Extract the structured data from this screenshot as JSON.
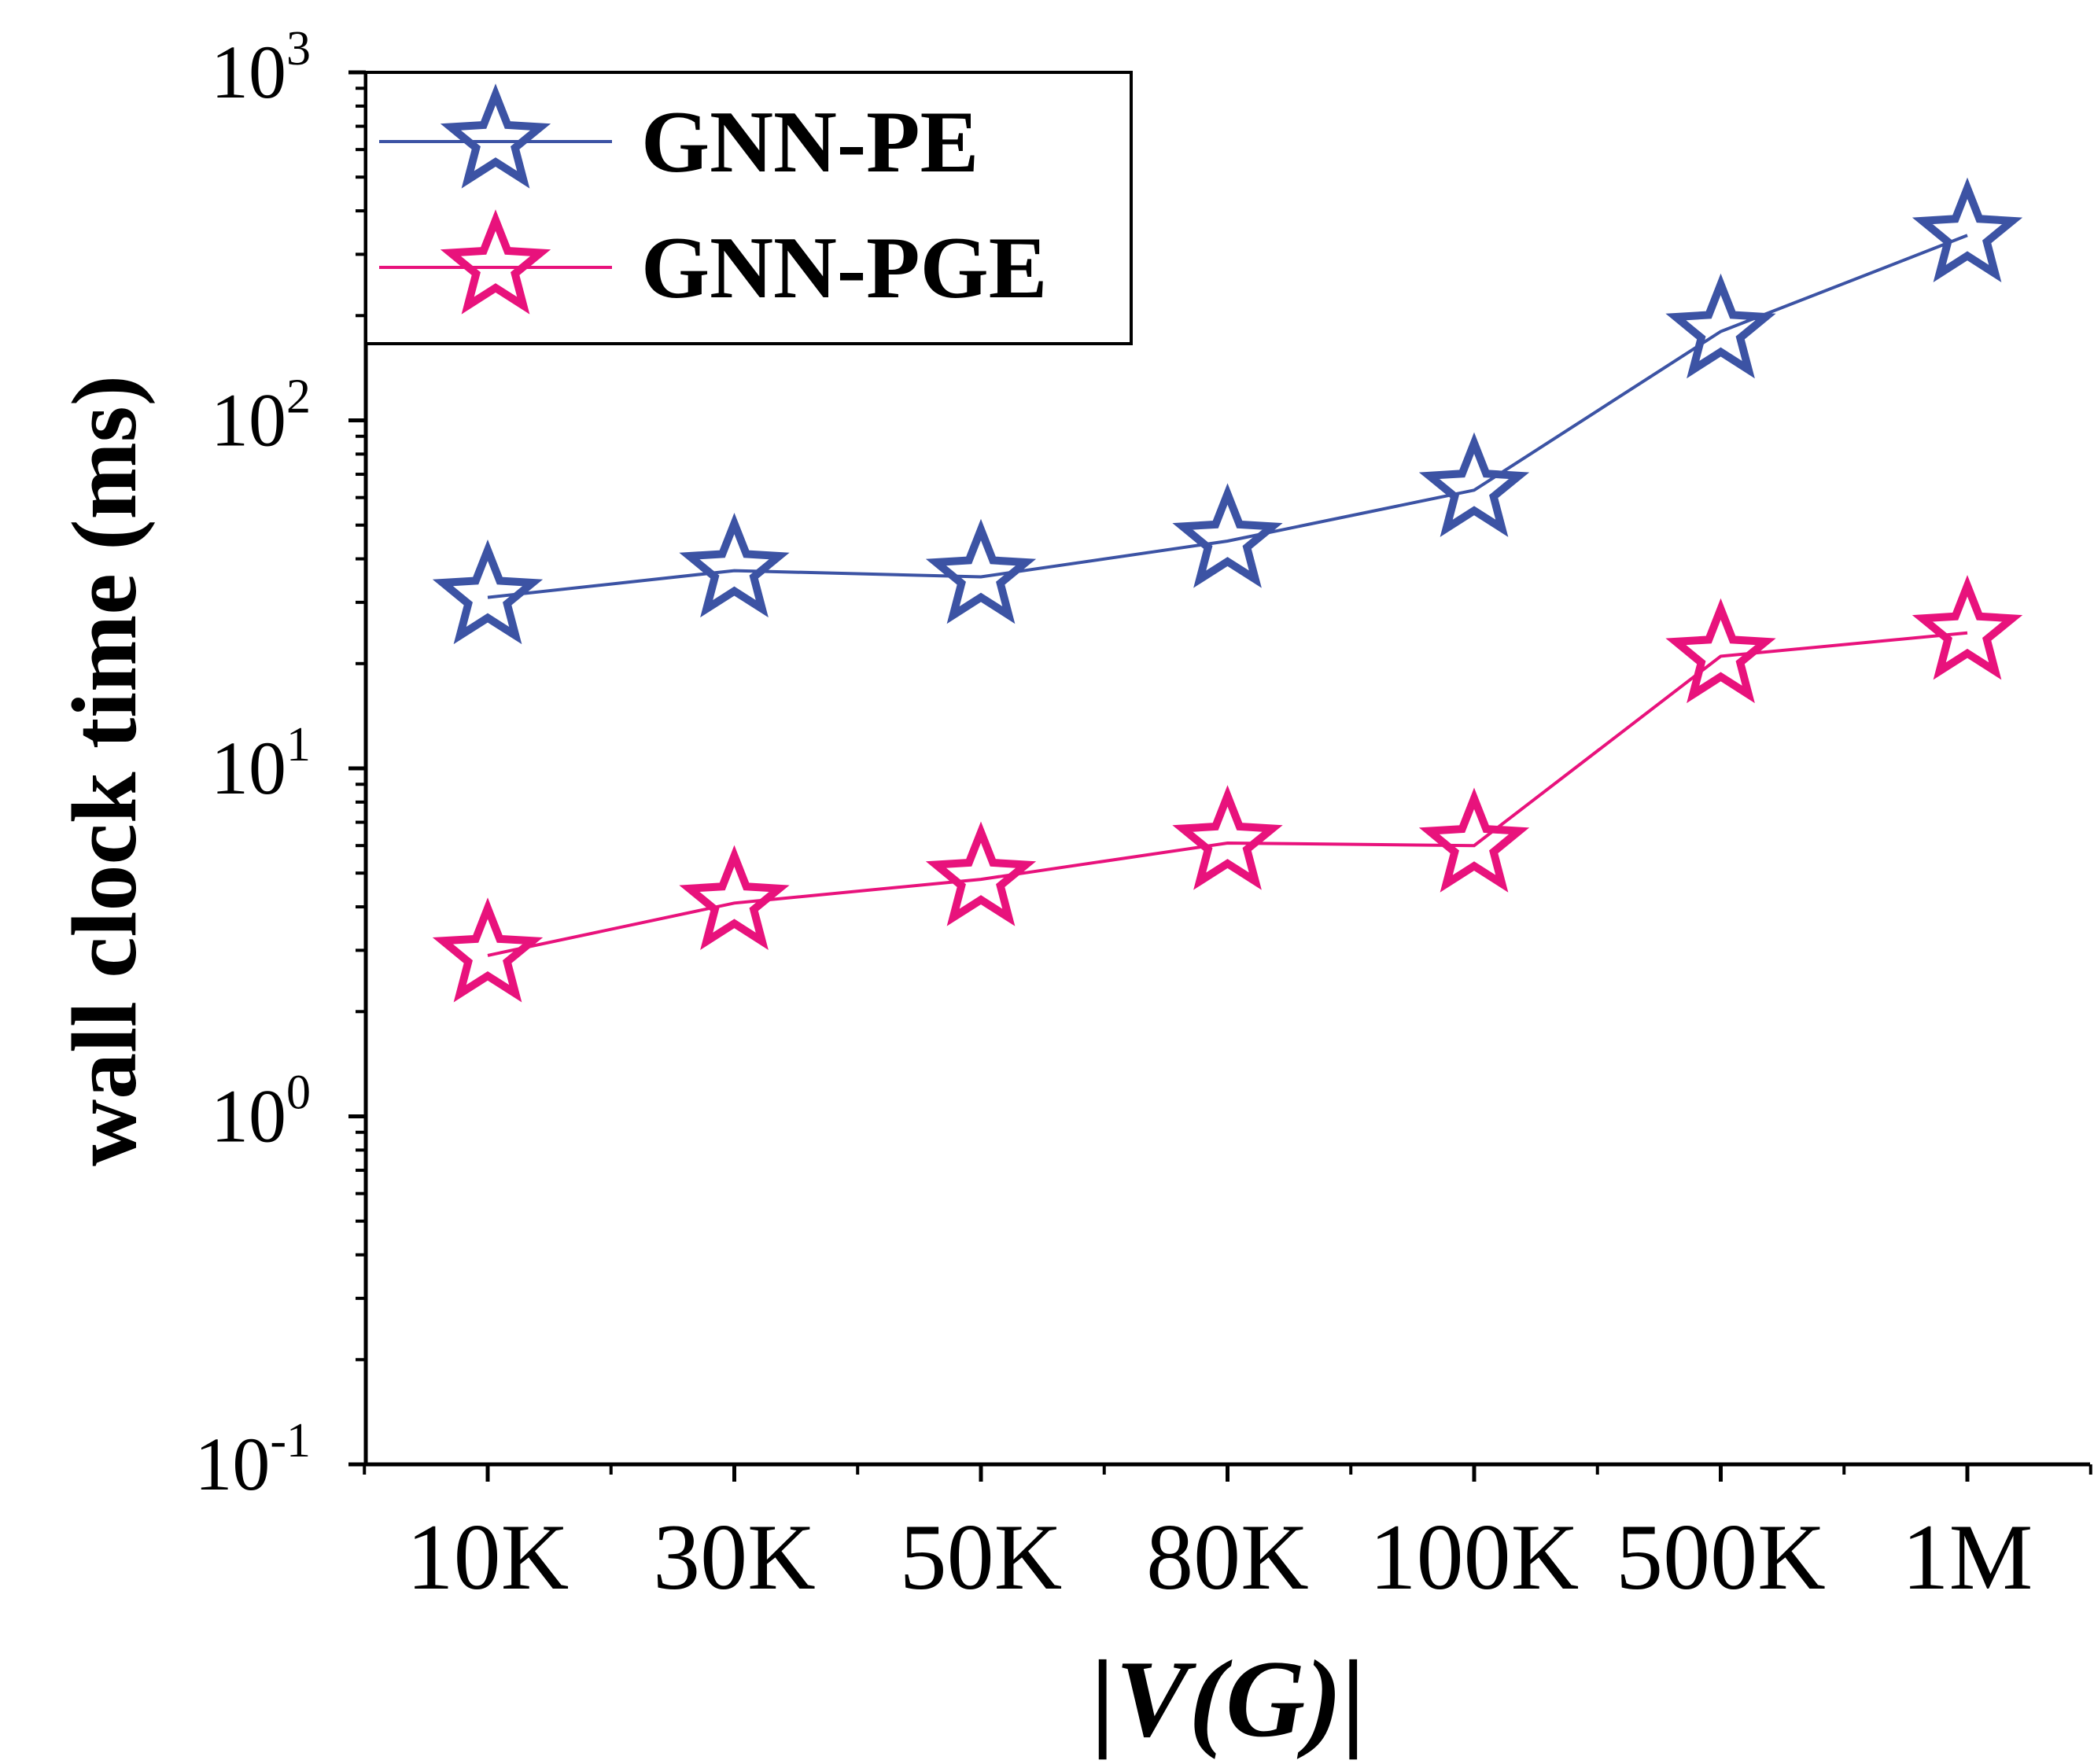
{
  "chart_data": {
    "type": "line",
    "title": "",
    "xlabel": "|V(G)|",
    "ylabel": "wall clock time (ms)",
    "yscale": "log",
    "ylim": [
      0.1,
      1000
    ],
    "categories": [
      "10K",
      "30K",
      "50K",
      "80K",
      "100K",
      "500K",
      "1M"
    ],
    "y_tick_labels": [
      {
        "base": "10",
        "exp": "-1",
        "value": 0.1
      },
      {
        "base": "10",
        "exp": "0",
        "value": 1
      },
      {
        "base": "10",
        "exp": "1",
        "value": 10
      },
      {
        "base": "10",
        "exp": "2",
        "value": 100
      },
      {
        "base": "10",
        "exp": "3",
        "value": 1000
      }
    ],
    "legend_position": "top-left",
    "series": [
      {
        "name": "GNN-PE",
        "color": "#3c53a4",
        "marker": "star-open",
        "values": [
          31,
          37,
          35.5,
          45,
          63,
          180,
          340
        ]
      },
      {
        "name": "GNN-PGE",
        "color": "#e8127c",
        "marker": "star-open",
        "values": [
          2.9,
          4.1,
          4.8,
          6.1,
          6.0,
          21,
          24.5
        ]
      }
    ]
  }
}
